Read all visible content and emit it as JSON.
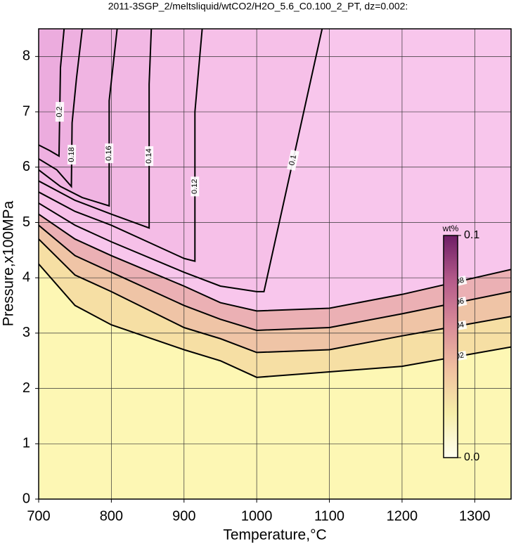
{
  "chart_data": {
    "type": "contour",
    "title": "2011-3SGP_2/meltsliquid/wtCO2/H2O_5.6_C0.100_2_PT, dz=0.002:",
    "x_label": "Temperature,°C",
    "y_label": "Pressure,x100MPa",
    "xlim": [
      700,
      1350
    ],
    "ylim": [
      0,
      8.5
    ],
    "xticks": [
      700,
      800,
      900,
      1000,
      1100,
      1200,
      1300
    ],
    "yticks": [
      0,
      1,
      2,
      3,
      4,
      5,
      6,
      7,
      8
    ],
    "grid": true,
    "base_fill": "#fdf7b4",
    "contours": [
      {
        "level": 0.02,
        "fill": "#f6dfa4",
        "x": [
          700,
          750,
          800,
          900,
          950,
          1000,
          1100,
          1200,
          1350
        ],
        "y": [
          4.25,
          3.5,
          3.15,
          2.7,
          2.5,
          2.2,
          2.3,
          2.4,
          2.75
        ]
      },
      {
        "level": 0.04,
        "fill": "#efc4a6",
        "x": [
          700,
          750,
          800,
          900,
          950,
          1000,
          1100,
          1200,
          1350
        ],
        "y": [
          4.7,
          4.05,
          3.75,
          3.1,
          2.9,
          2.65,
          2.7,
          2.95,
          3.3
        ]
      },
      {
        "level": 0.06,
        "fill": "#ebb0b4",
        "x": [
          700,
          750,
          800,
          900,
          950,
          1000,
          1100,
          1200,
          1350
        ],
        "y": [
          4.95,
          4.4,
          4.1,
          3.5,
          3.25,
          3.05,
          3.1,
          3.35,
          3.75
        ]
      },
      {
        "level": 0.08,
        "fill": "#f8c6ec",
        "x": [
          700,
          750,
          800,
          900,
          950,
          1000,
          1100,
          1200,
          1350
        ],
        "y": [
          5.15,
          4.7,
          4.4,
          3.85,
          3.55,
          3.4,
          3.45,
          3.7,
          4.15
        ]
      },
      {
        "level": 0.1,
        "fill": "#f6c0e8",
        "x": [
          700,
          750,
          800,
          900,
          950,
          1000,
          1010,
          1090
        ],
        "y": [
          5.35,
          4.95,
          4.65,
          4.1,
          3.85,
          3.75,
          3.75,
          8.5
        ]
      },
      {
        "level": 0.12,
        "fill": "#f4bce6",
        "x": [
          700,
          750,
          800,
          850,
          900,
          915,
          915,
          925
        ],
        "y": [
          5.55,
          5.2,
          4.95,
          4.65,
          4.35,
          4.3,
          7.0,
          8.5
        ]
      },
      {
        "level": 0.14,
        "fill": "#f2b8e4",
        "x": [
          700,
          750,
          800,
          852,
          852,
          855
        ],
        "y": [
          5.75,
          5.4,
          5.15,
          4.9,
          7.5,
          8.5
        ]
      },
      {
        "level": 0.16,
        "fill": "#f0b4e2",
        "x": [
          700,
          730,
          760,
          797,
          797,
          808
        ],
        "y": [
          5.95,
          5.65,
          5.45,
          5.3,
          7.2,
          8.5
        ]
      },
      {
        "level": 0.18,
        "fill": "#eeb0e0",
        "x": [
          700,
          725,
          745,
          746,
          752,
          760
        ],
        "y": [
          6.15,
          5.95,
          5.65,
          6.8,
          7.6,
          8.5
        ]
      },
      {
        "level": 0.2,
        "fill": "#ecacde",
        "x": [
          700,
          715,
          728,
          730,
          735
        ],
        "y": [
          6.4,
          6.3,
          6.2,
          7.8,
          8.5
        ]
      }
    ],
    "colorbar": {
      "label": "wt%",
      "lim": [
        0,
        0.1
      ],
      "ticks": [
        {
          "value": 0,
          "label": "0.0"
        },
        0.1
      ],
      "colors": [
        "#fffff0",
        "#f6eea8",
        "#f0c0a0",
        "#d88a98",
        "#b45a8a",
        "#6e1e66"
      ]
    }
  }
}
